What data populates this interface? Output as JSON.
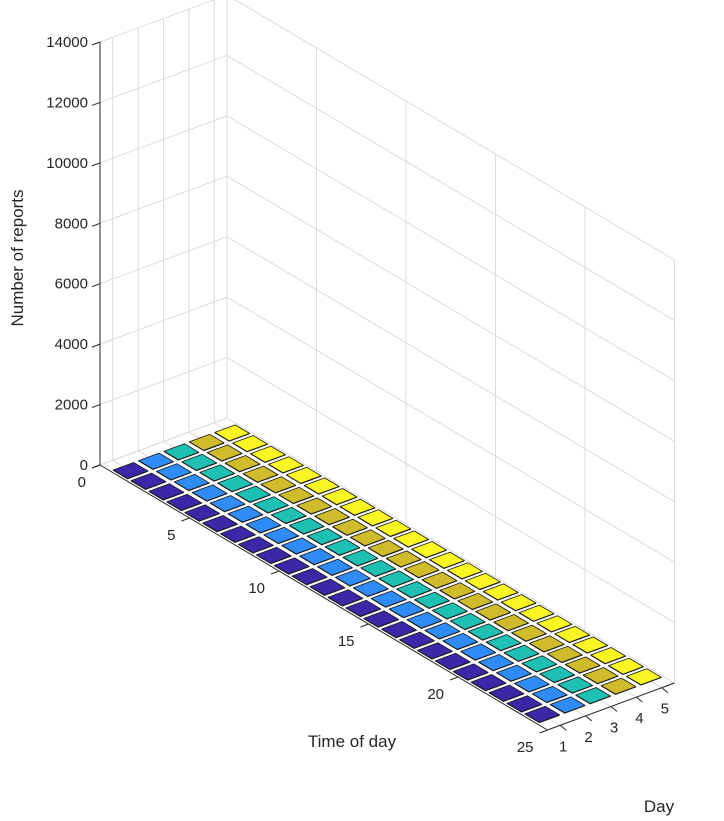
{
  "chart_data": {
    "type": "bar3",
    "xlabel": "Time of day",
    "ylabel": "Day",
    "zlabel": "Number of reports",
    "time_ticks": [
      "0",
      "5",
      "10",
      "15",
      "20",
      "25"
    ],
    "day_ticks": [
      "1",
      "2",
      "3",
      "4",
      "5"
    ],
    "z_ticks": [
      "0",
      "2000",
      "4000",
      "6000",
      "8000",
      "10000",
      "12000",
      "14000"
    ],
    "zlim": [
      0,
      14000
    ],
    "grid": true,
    "day_colors": [
      "#3e26a8",
      "#2f8cf6",
      "#1ec0b3",
      "#d0bb2a",
      "#f9f623"
    ],
    "categories": [
      "1",
      "2",
      "3",
      "4",
      "5",
      "6",
      "7",
      "8",
      "9",
      "10",
      "11",
      "12",
      "13",
      "14",
      "15",
      "16",
      "17",
      "18",
      "19",
      "20",
      "21",
      "22",
      "23",
      "24"
    ],
    "series": [
      {
        "values": [
          0,
          0,
          0,
          0,
          0,
          0,
          0,
          0,
          0,
          0,
          0,
          0,
          0,
          0,
          0,
          0,
          0,
          0,
          0,
          0,
          0,
          0,
          0,
          0
        ]
      },
      {
        "values": [
          0,
          0,
          0,
          0,
          0,
          0,
          0,
          0,
          0,
          0,
          0,
          0,
          0,
          0,
          0,
          0,
          0,
          0,
          0,
          0,
          0,
          0,
          0,
          0
        ]
      },
      {
        "values": [
          0,
          0,
          0,
          0,
          0,
          0,
          0,
          0,
          0,
          0,
          0,
          0,
          0,
          0,
          0,
          0,
          0,
          0,
          0,
          0,
          0,
          0,
          0,
          0
        ]
      },
      {
        "values": [
          0,
          0,
          0,
          0,
          0,
          0,
          0,
          0,
          0,
          0,
          0,
          0,
          0,
          0,
          0,
          0,
          0,
          0,
          0,
          0,
          0,
          0,
          0,
          0
        ]
      },
      {
        "values": [
          0,
          0,
          0,
          0,
          0,
          0,
          0,
          0,
          0,
          0,
          0,
          0,
          0,
          0,
          0,
          0,
          0,
          0,
          0,
          0,
          0,
          0,
          0,
          0
        ]
      }
    ]
  }
}
